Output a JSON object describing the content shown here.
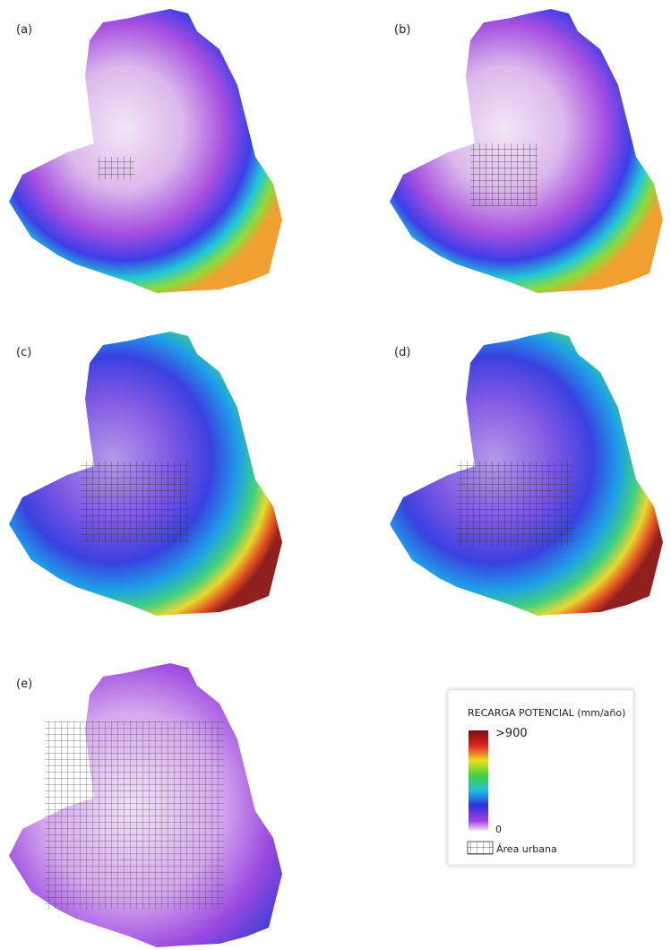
{
  "panels": [
    {
      "label": "(a)"
    },
    {
      "label": "(b)"
    },
    {
      "label": "(c)"
    },
    {
      "label": "(d)"
    },
    {
      "label": "(e)"
    }
  ],
  "legend": {
    "title": "RECARGA POTENCIAL (mm/año)",
    "max_label": ">900",
    "min_label": "0",
    "urban_label": "Área urbana"
  }
}
